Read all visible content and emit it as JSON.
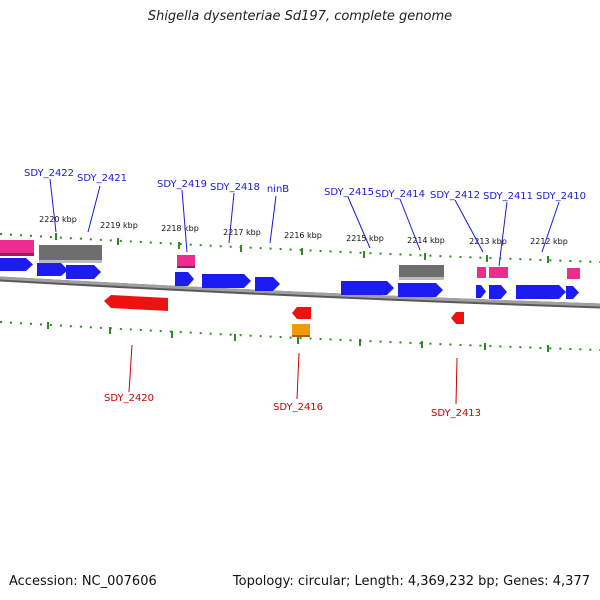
{
  "title": "Shigella dysenteriae Sd197, complete genome",
  "footer": {
    "accession": "Accession: NC_007606",
    "summary": "Topology: circular; Length: 4,369,232 bp; Genes: 4,377"
  },
  "colors": {
    "backbone": "#8a8a8a",
    "tick": "#2e8b22",
    "forward_label": "#1a1ad9",
    "reverse_label": "#cc0000",
    "gene_blue": "#1c1cf0",
    "gene_pink": "#ef2b8f",
    "gene_gray": "#6e6e6e",
    "gene_red": "#ee1111",
    "gene_orange": "#f39a0c"
  },
  "scale_labels": [
    "2220 kbp",
    "2219 kbp",
    "2218 kbp",
    "2217 kbp",
    "2216 kbp",
    "2215 kbp",
    "2214 kbp",
    "2213 kbp",
    "2212 kbp"
  ],
  "forward_labels": [
    "SDY_2422",
    "SDY_2421",
    "SDY_2419",
    "SDY_2418",
    "ninB",
    "SDY_2415",
    "SDY_2414",
    "SDY_2412",
    "SDY_2411",
    "SDY_2410"
  ],
  "reverse_labels": [
    "SDY_2420",
    "SDY_2416",
    "SDY_2413"
  ]
}
